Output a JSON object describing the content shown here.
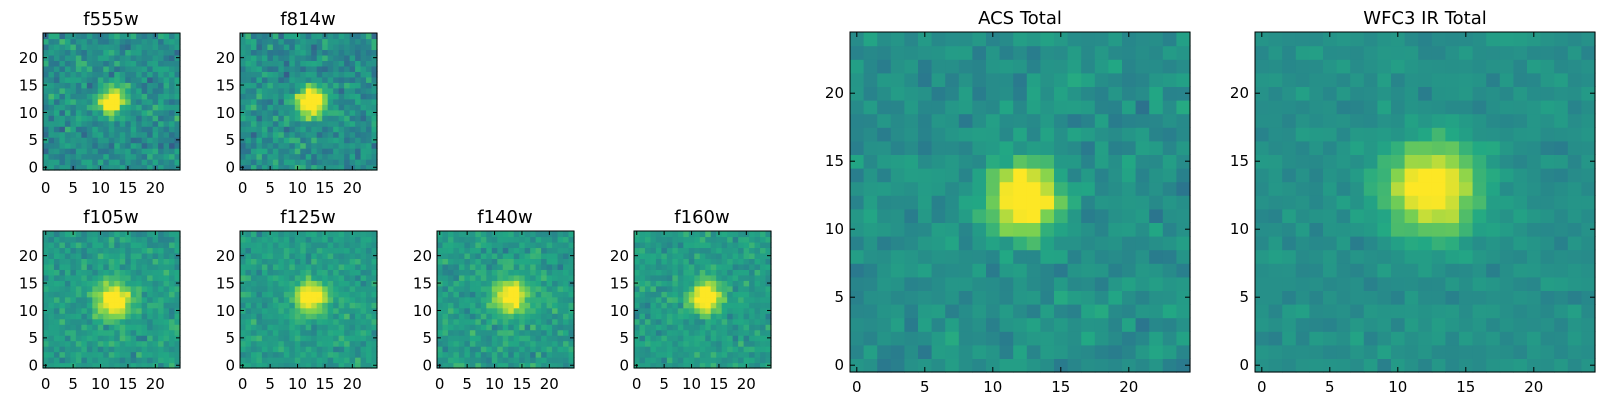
{
  "chart_data": [
    {
      "type": "heatmap",
      "title": "f555w",
      "grid": false,
      "colormap": "viridis",
      "x_ticks": [
        0,
        5,
        10,
        15,
        20
      ],
      "y_ticks": [
        0,
        5,
        10,
        15,
        20
      ],
      "xlim": [
        -0.5,
        24.5
      ],
      "ylim": [
        -0.5,
        24.5
      ],
      "grid_size": [
        25,
        25
      ],
      "source": {
        "x": 12,
        "y": 12,
        "sigma": 1.6,
        "peak": 0.8
      },
      "background": 0.5,
      "noise": 0.22,
      "seed": 11
    },
    {
      "type": "heatmap",
      "title": "f814w",
      "grid": false,
      "colormap": "viridis",
      "x_ticks": [
        0,
        5,
        10,
        15,
        20
      ],
      "y_ticks": [
        0,
        5,
        10,
        15,
        20
      ],
      "xlim": [
        -0.5,
        24.5
      ],
      "ylim": [
        -0.5,
        24.5
      ],
      "grid_size": [
        25,
        25
      ],
      "source": {
        "x": 12.5,
        "y": 12,
        "sigma": 1.7,
        "peak": 0.85
      },
      "background": 0.5,
      "noise": 0.23,
      "seed": 23
    },
    {
      "type": "heatmap",
      "title": "f105w",
      "grid": false,
      "colormap": "viridis",
      "x_ticks": [
        0,
        5,
        10,
        15,
        20
      ],
      "y_ticks": [
        0,
        5,
        10,
        15,
        20
      ],
      "xlim": [
        -0.5,
        24.5
      ],
      "ylim": [
        -0.5,
        24.5
      ],
      "grid_size": [
        25,
        25
      ],
      "source": {
        "x": 12.5,
        "y": 12,
        "sigma": 2.2,
        "peak": 0.6
      },
      "background": 0.55,
      "noise": 0.17,
      "seed": 37
    },
    {
      "type": "heatmap",
      "title": "f125w",
      "grid": false,
      "colormap": "viridis",
      "x_ticks": [
        0,
        5,
        10,
        15,
        20
      ],
      "y_ticks": [
        0,
        5,
        10,
        15,
        20
      ],
      "xlim": [
        -0.5,
        24.5
      ],
      "ylim": [
        -0.5,
        24.5
      ],
      "grid_size": [
        25,
        25
      ],
      "source": {
        "x": 12.5,
        "y": 12.5,
        "sigma": 2.0,
        "peak": 0.6
      },
      "background": 0.55,
      "noise": 0.16,
      "seed": 41
    },
    {
      "type": "heatmap",
      "title": "f140w",
      "grid": false,
      "colormap": "viridis",
      "x_ticks": [
        0,
        5,
        10,
        15,
        20
      ],
      "y_ticks": [
        0,
        5,
        10,
        15,
        20
      ],
      "xlim": [
        -0.5,
        24.5
      ],
      "ylim": [
        -0.5,
        24.5
      ],
      "grid_size": [
        25,
        25
      ],
      "source": {
        "x": 13,
        "y": 12.5,
        "sigma": 2.2,
        "peak": 0.55
      },
      "background": 0.55,
      "noise": 0.17,
      "seed": 53
    },
    {
      "type": "heatmap",
      "title": "f160w",
      "grid": false,
      "colormap": "viridis",
      "x_ticks": [
        0,
        5,
        10,
        15,
        20
      ],
      "y_ticks": [
        0,
        5,
        10,
        15,
        20
      ],
      "xlim": [
        -0.5,
        24.5
      ],
      "ylim": [
        -0.5,
        24.5
      ],
      "grid_size": [
        25,
        25
      ],
      "source": {
        "x": 12.5,
        "y": 12.5,
        "sigma": 2.0,
        "peak": 0.6
      },
      "background": 0.55,
      "noise": 0.16,
      "seed": 67
    },
    {
      "type": "heatmap",
      "title": "ACS Total",
      "grid": false,
      "colormap": "viridis",
      "x_ticks": [
        0,
        5,
        10,
        15,
        20
      ],
      "y_ticks": [
        0,
        5,
        10,
        15,
        20
      ],
      "xlim": [
        -0.5,
        24.5
      ],
      "ylim": [
        -0.5,
        24.5
      ],
      "grid_size": [
        25,
        25
      ],
      "source": {
        "x": 12.3,
        "y": 12.3,
        "sigma": 1.7,
        "peak": 0.75
      },
      "background": 0.5,
      "noise": 0.14,
      "seed": 79
    },
    {
      "type": "heatmap",
      "title": "WFC3 IR Total",
      "grid": false,
      "colormap": "viridis",
      "x_ticks": [
        0,
        5,
        10,
        15,
        20
      ],
      "y_ticks": [
        0,
        5,
        10,
        15,
        20
      ],
      "xlim": [
        -0.5,
        24.5
      ],
      "ylim": [
        -0.5,
        24.5
      ],
      "grid_size": [
        25,
        25
      ],
      "source": {
        "x": 12.5,
        "y": 13,
        "sigma": 2.3,
        "peak": 0.6
      },
      "background": 0.5,
      "noise": 0.09,
      "seed": 97
    }
  ],
  "colors": {
    "colormap_stops": [
      "#440154",
      "#414487",
      "#2a788e",
      "#22a884",
      "#7ad151",
      "#fde725"
    ]
  }
}
